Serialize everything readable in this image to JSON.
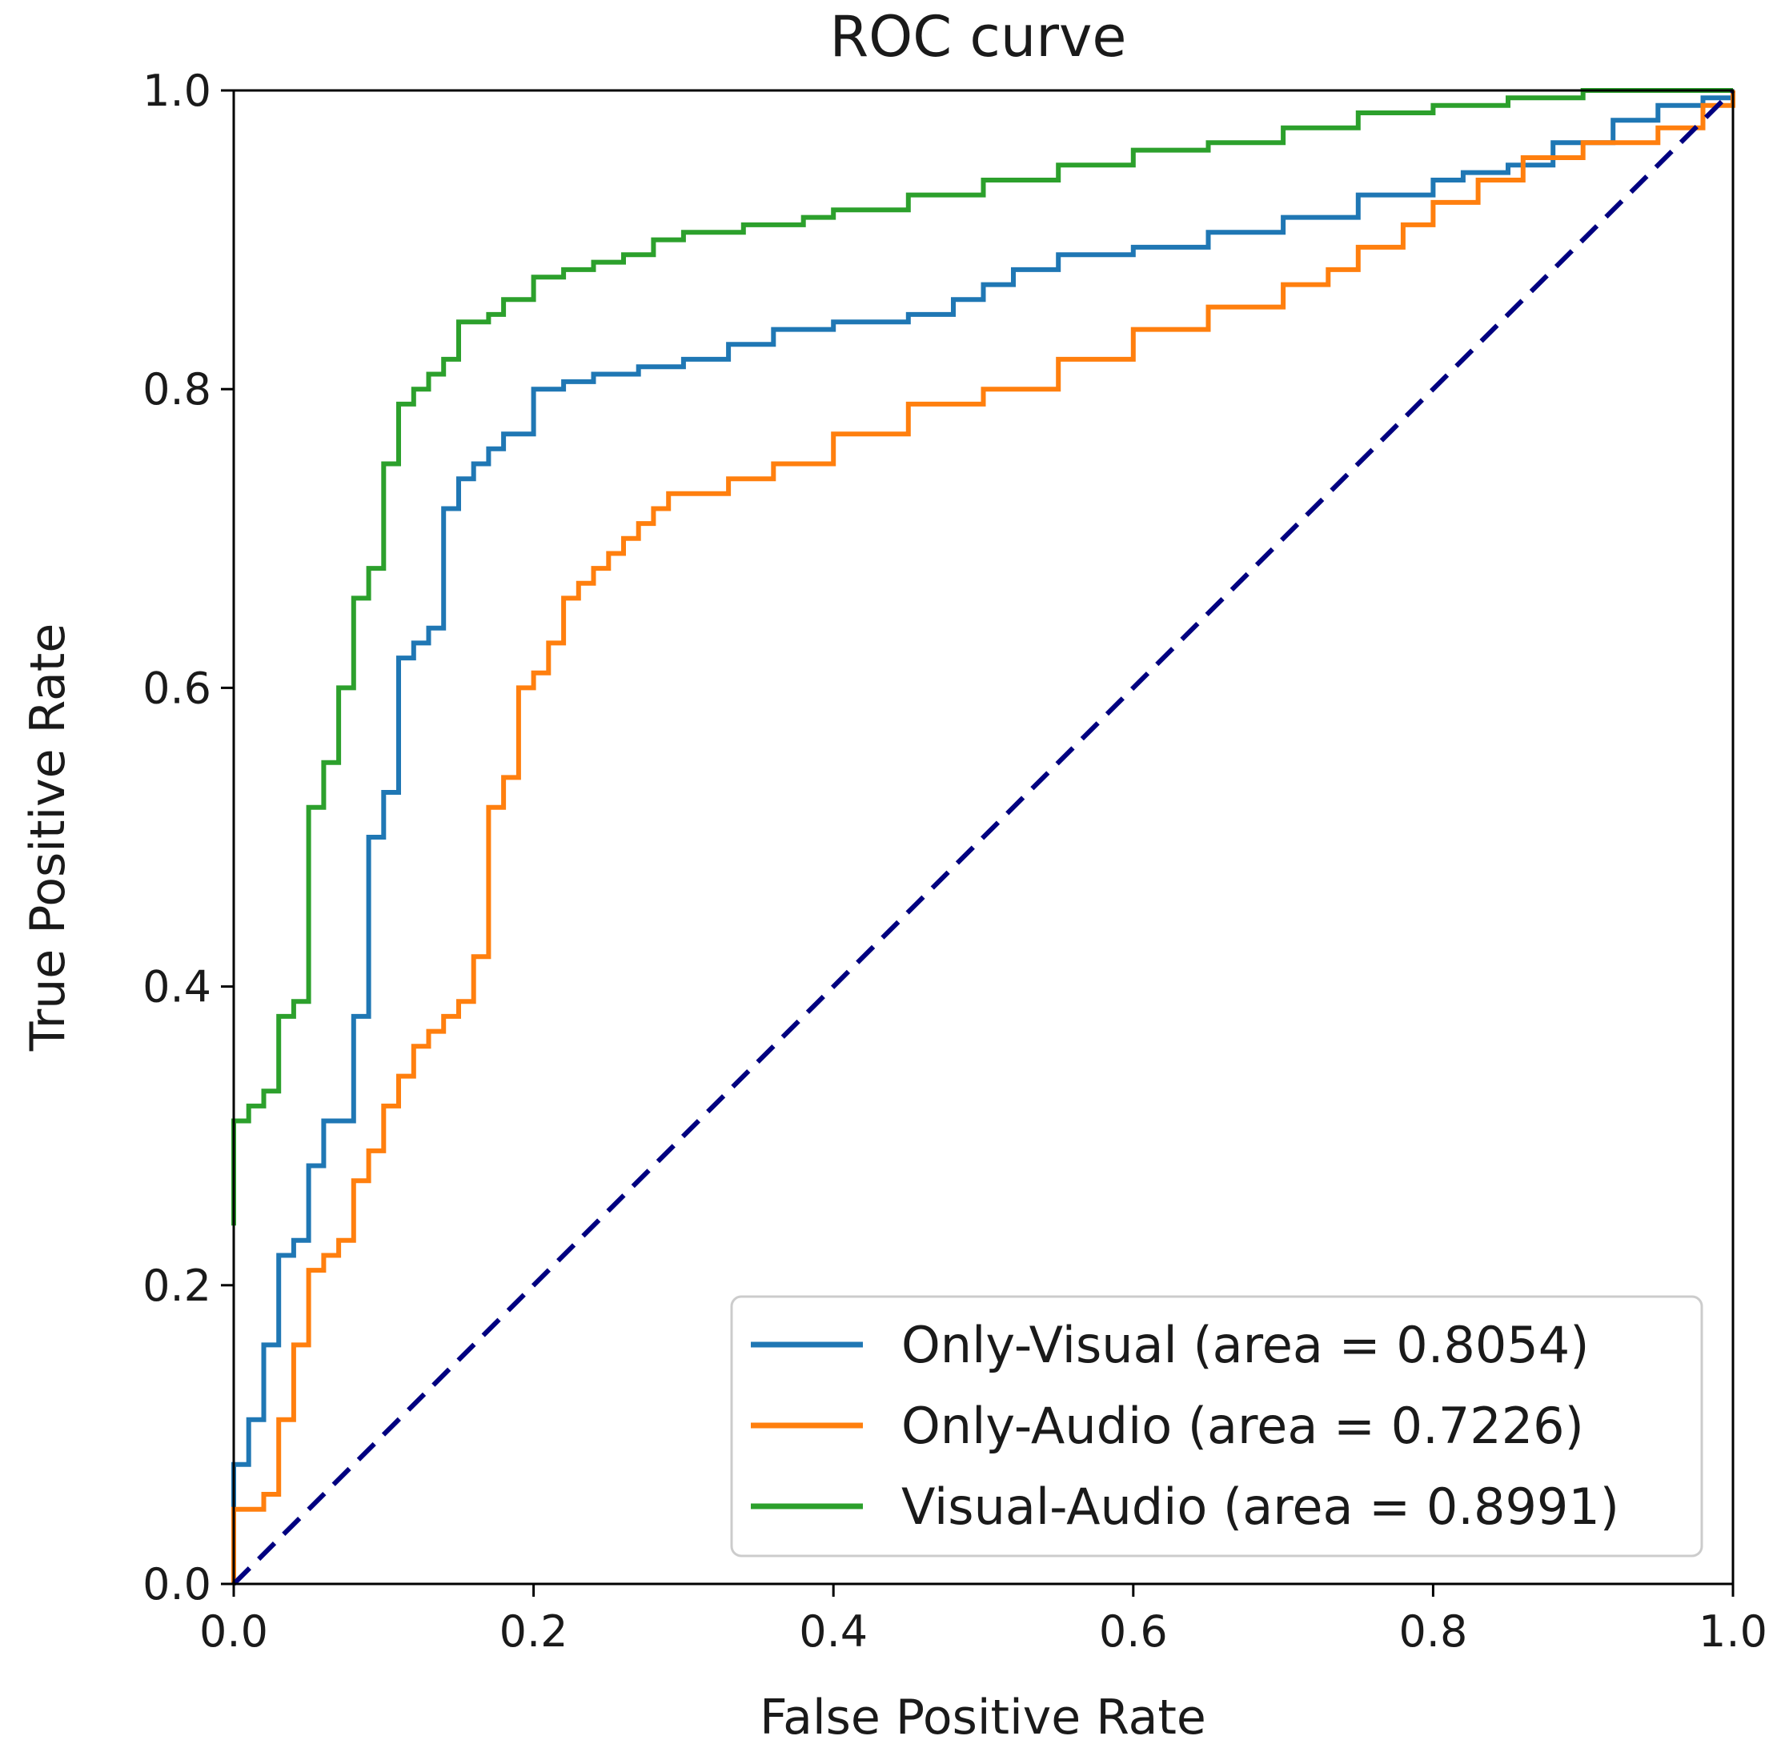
{
  "chart_data": {
    "type": "line",
    "title": "ROC curve",
    "xlabel": "False Positive Rate",
    "ylabel": "True Positive Rate",
    "xlim": [
      0.0,
      1.0
    ],
    "ylim": [
      0.0,
      1.0
    ],
    "x_ticks": [
      "0.0",
      "0.2",
      "0.4",
      "0.6",
      "0.8",
      "1.0"
    ],
    "y_ticks": [
      "0.0",
      "0.2",
      "0.4",
      "0.6",
      "0.8",
      "1.0"
    ],
    "grid": false,
    "legend_position": "lower-right",
    "series": [
      {
        "name": "Only-Visual (area = 0.8054)",
        "color": "#1f77b4",
        "x": [
          0.0,
          0.0,
          0.01,
          0.01,
          0.02,
          0.02,
          0.03,
          0.03,
          0.04,
          0.05,
          0.05,
          0.06,
          0.06,
          0.07,
          0.08,
          0.08,
          0.09,
          0.09,
          0.1,
          0.1,
          0.11,
          0.11,
          0.12,
          0.13,
          0.14,
          0.14,
          0.15,
          0.15,
          0.16,
          0.17,
          0.18,
          0.18,
          0.2,
          0.2,
          0.22,
          0.24,
          0.27,
          0.3,
          0.33,
          0.36,
          0.4,
          0.45,
          0.48,
          0.5,
          0.52,
          0.55,
          0.6,
          0.65,
          0.7,
          0.75,
          0.8,
          0.82,
          0.85,
          0.88,
          0.92,
          0.95,
          0.98,
          1.0
        ],
        "y": [
          0.0,
          0.08,
          0.1,
          0.11,
          0.12,
          0.16,
          0.21,
          0.22,
          0.23,
          0.26,
          0.28,
          0.3,
          0.31,
          0.31,
          0.31,
          0.38,
          0.48,
          0.5,
          0.52,
          0.53,
          0.61,
          0.62,
          0.63,
          0.64,
          0.67,
          0.72,
          0.74,
          0.74,
          0.75,
          0.76,
          0.77,
          0.77,
          0.8,
          0.8,
          0.805,
          0.81,
          0.815,
          0.82,
          0.83,
          0.84,
          0.845,
          0.85,
          0.86,
          0.87,
          0.88,
          0.89,
          0.895,
          0.905,
          0.915,
          0.93,
          0.94,
          0.945,
          0.95,
          0.965,
          0.98,
          0.99,
          0.995,
          1.0
        ]
      },
      {
        "name": "Only-Audio (area = 0.7226)",
        "color": "#ff7f0e",
        "x": [
          0.0,
          0.0,
          0.01,
          0.02,
          0.03,
          0.03,
          0.04,
          0.05,
          0.05,
          0.06,
          0.07,
          0.08,
          0.08,
          0.09,
          0.1,
          0.11,
          0.11,
          0.12,
          0.13,
          0.14,
          0.15,
          0.16,
          0.16,
          0.17,
          0.17,
          0.18,
          0.18,
          0.19,
          0.2,
          0.21,
          0.21,
          0.22,
          0.23,
          0.24,
          0.25,
          0.26,
          0.27,
          0.28,
          0.29,
          0.3,
          0.33,
          0.36,
          0.4,
          0.45,
          0.5,
          0.55,
          0.6,
          0.65,
          0.7,
          0.73,
          0.75,
          0.78,
          0.8,
          0.83,
          0.86,
          0.9,
          0.95,
          0.98,
          1.0
        ],
        "y": [
          0.0,
          0.05,
          0.05,
          0.06,
          0.07,
          0.11,
          0.16,
          0.2,
          0.21,
          0.22,
          0.23,
          0.26,
          0.27,
          0.29,
          0.32,
          0.33,
          0.34,
          0.36,
          0.37,
          0.38,
          0.39,
          0.41,
          0.42,
          0.48,
          0.52,
          0.53,
          0.54,
          0.6,
          0.61,
          0.62,
          0.63,
          0.66,
          0.67,
          0.68,
          0.69,
          0.7,
          0.71,
          0.72,
          0.73,
          0.73,
          0.74,
          0.75,
          0.77,
          0.79,
          0.8,
          0.82,
          0.84,
          0.855,
          0.87,
          0.88,
          0.895,
          0.91,
          0.925,
          0.94,
          0.955,
          0.965,
          0.975,
          0.99,
          1.0
        ]
      },
      {
        "name": "Visual-Audio (area = 0.8991)",
        "color": "#2ca02c",
        "x": [
          0.0,
          0.0,
          0.01,
          0.02,
          0.03,
          0.03,
          0.04,
          0.05,
          0.05,
          0.06,
          0.06,
          0.07,
          0.07,
          0.08,
          0.08,
          0.09,
          0.09,
          0.1,
          0.1,
          0.11,
          0.11,
          0.12,
          0.13,
          0.14,
          0.15,
          0.15,
          0.17,
          0.18,
          0.2,
          0.2,
          0.22,
          0.24,
          0.26,
          0.28,
          0.3,
          0.34,
          0.38,
          0.4,
          0.45,
          0.5,
          0.55,
          0.6,
          0.65,
          0.7,
          0.75,
          0.8,
          0.85,
          0.9,
          0.95,
          1.0
        ],
        "y": [
          0.24,
          0.31,
          0.32,
          0.33,
          0.37,
          0.38,
          0.39,
          0.47,
          0.52,
          0.53,
          0.55,
          0.57,
          0.6,
          0.62,
          0.66,
          0.67,
          0.68,
          0.74,
          0.75,
          0.79,
          0.79,
          0.8,
          0.81,
          0.82,
          0.84,
          0.845,
          0.85,
          0.86,
          0.87,
          0.875,
          0.88,
          0.885,
          0.89,
          0.9,
          0.905,
          0.91,
          0.915,
          0.92,
          0.93,
          0.94,
          0.95,
          0.96,
          0.965,
          0.975,
          0.985,
          0.99,
          0.995,
          1.0,
          1.0,
          1.0
        ]
      }
    ],
    "reference_line": {
      "color": "#000080",
      "style": "dashed",
      "x": [
        0.0,
        1.0
      ],
      "y": [
        0.0,
        1.0
      ]
    }
  }
}
